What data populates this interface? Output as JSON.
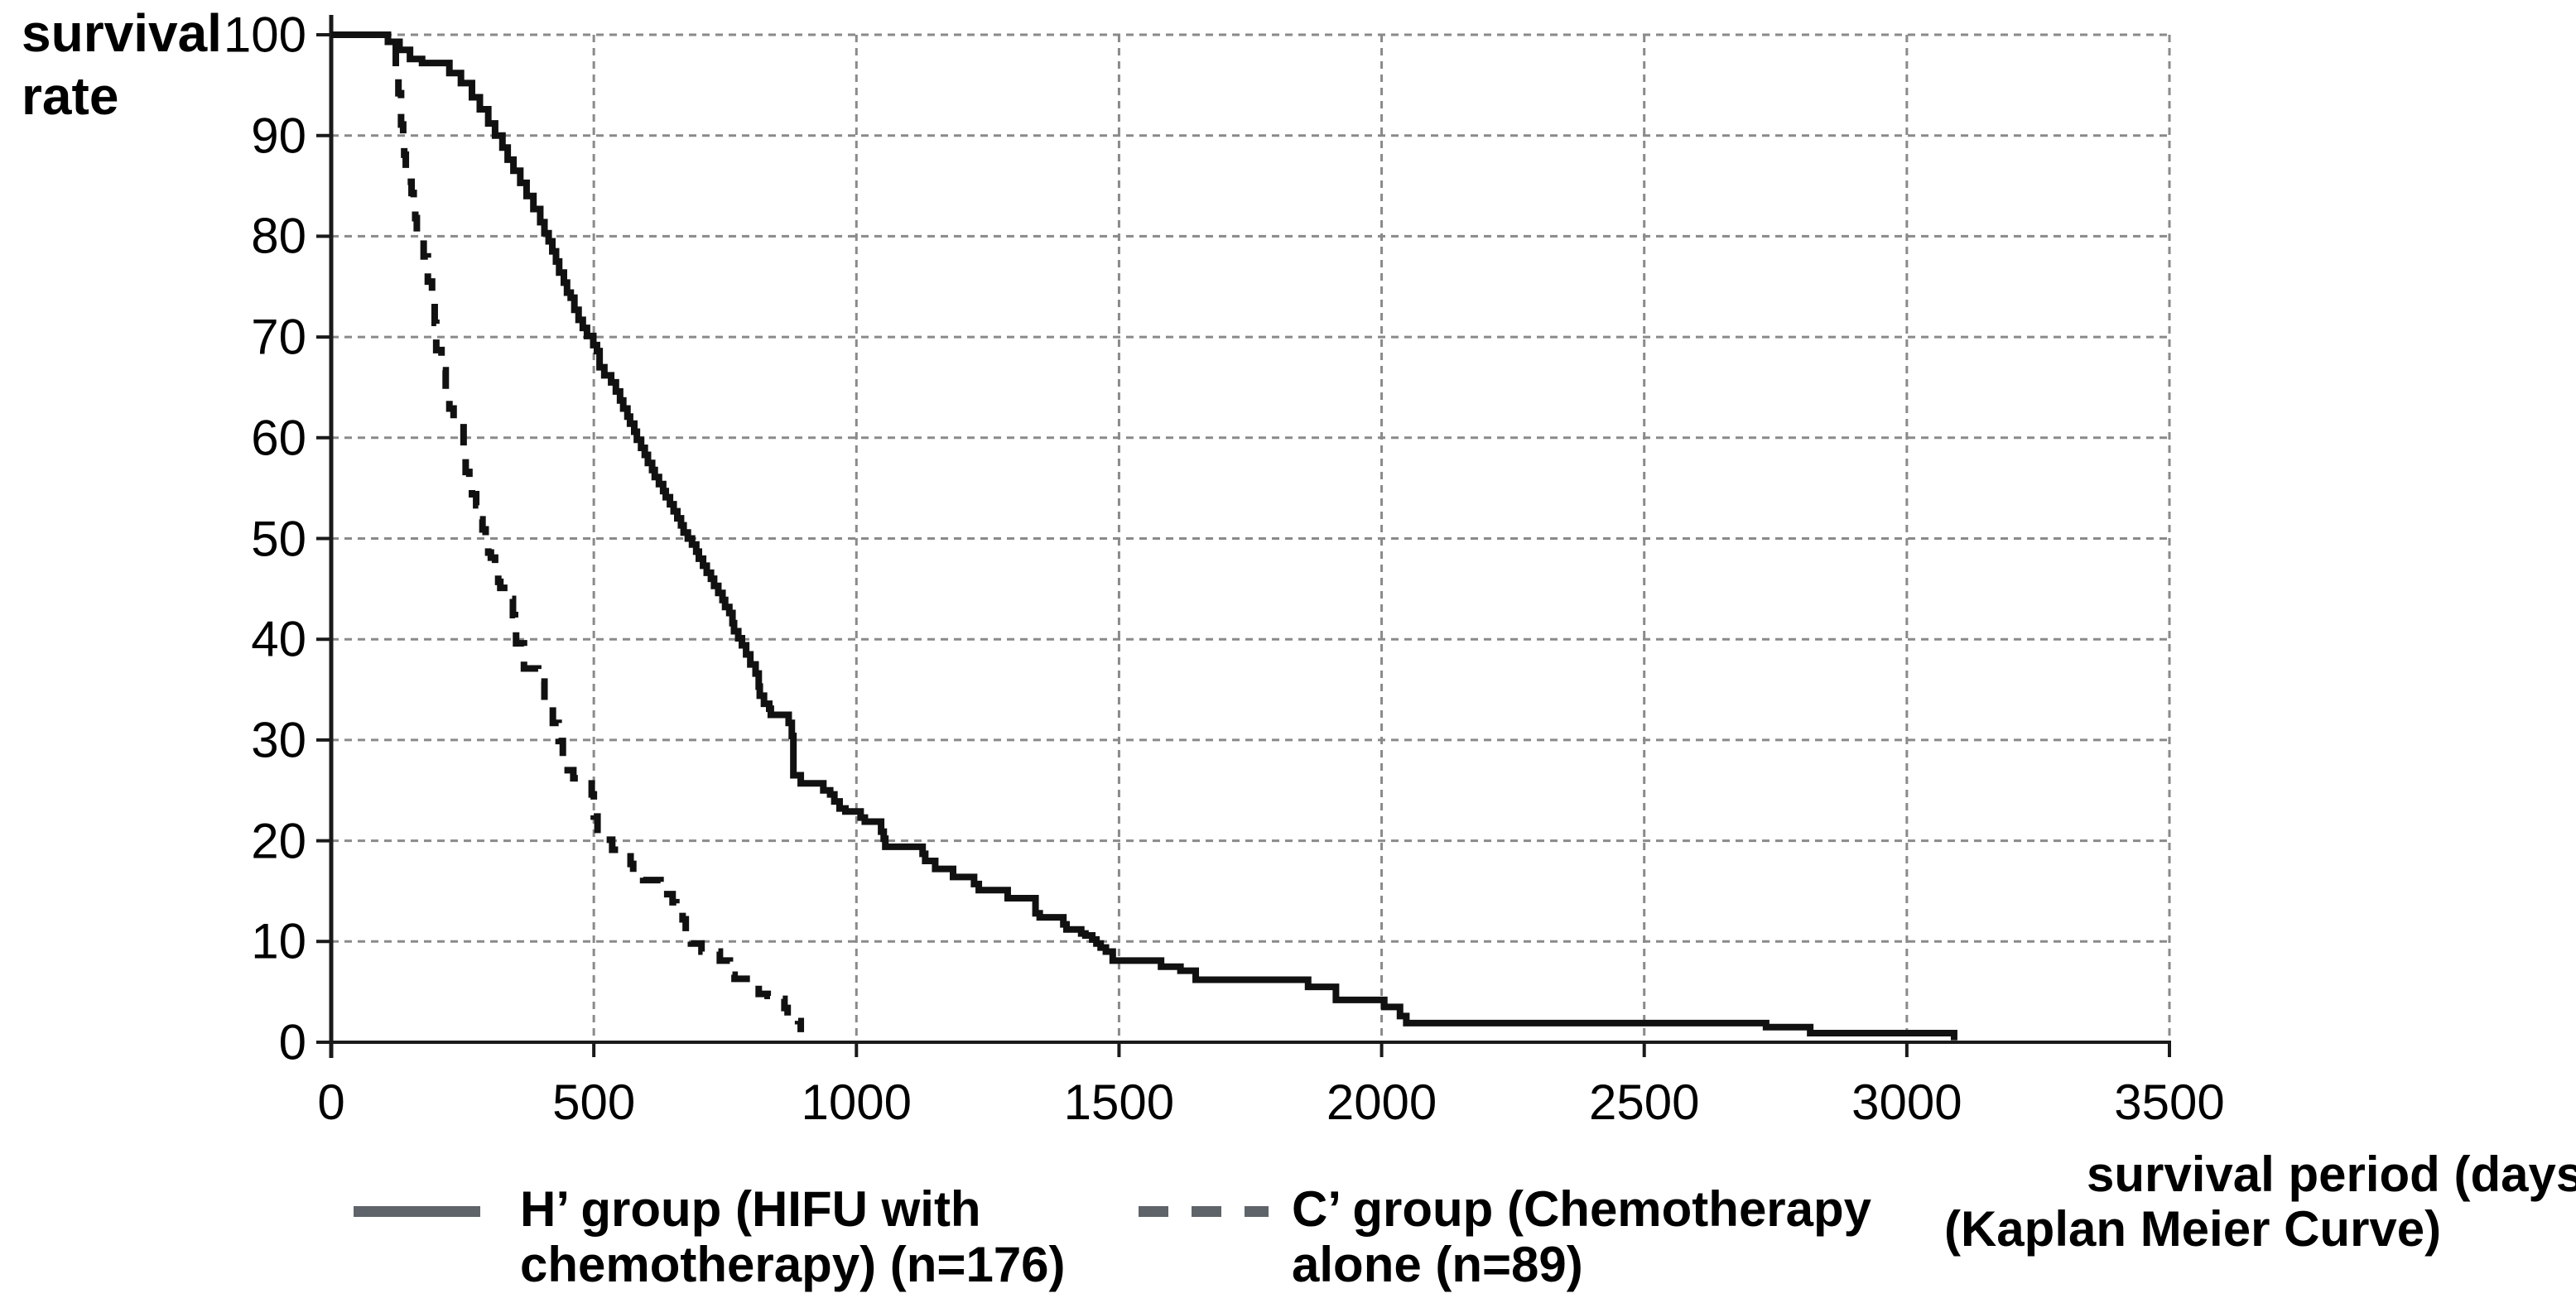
{
  "figure": {
    "background": "#ffffff",
    "y_axis_title": "survival rate",
    "x_axis_title_line1": "survival period (days)",
    "x_axis_title_line2": "(Kaplan Meier Curve)"
  },
  "colors": {
    "curve": "#111111",
    "axis": "#1a1a1a",
    "gridline": "#8a8a8a",
    "legend_sample": "#5f646b",
    "text": "#000000"
  },
  "legend": [
    {
      "id": "hifu",
      "style": "solid",
      "lines": [
        "H’ group (HIFU with",
        "chemotherapy) (n=176)"
      ]
    },
    {
      "id": "chemo",
      "style": "dashed",
      "lines": [
        "C’ group (Chemotherapy",
        "alone (n=89)"
      ]
    }
  ],
  "chart_data": {
    "type": "line",
    "subtype": "kaplan-meier-step",
    "title": "",
    "xlabel": "survival period (days)",
    "ylabel": "survival rate",
    "xlim": [
      0,
      3500
    ],
    "ylim": [
      0,
      100
    ],
    "x_ticks": [
      0,
      500,
      1000,
      1500,
      2000,
      2500,
      3000,
      3500
    ],
    "y_ticks": [
      0,
      10,
      20,
      30,
      40,
      50,
      60,
      70,
      80,
      90,
      100
    ],
    "grid": true,
    "legend_position": "bottom",
    "series": [
      {
        "name": "H’ group (HIFU with chemotherapy) (n=176)",
        "line_style": "solid",
        "points": [
          [
            0,
            100
          ],
          [
            108,
            99.3
          ],
          [
            130,
            98.5
          ],
          [
            150,
            97.6
          ],
          [
            173,
            97.2
          ],
          [
            225,
            96.2
          ],
          [
            247,
            95.2
          ],
          [
            268,
            93.8
          ],
          [
            283,
            92.6
          ],
          [
            299,
            91.2
          ],
          [
            312,
            90
          ],
          [
            326,
            88.8
          ],
          [
            336,
            87.6
          ],
          [
            347,
            86.5
          ],
          [
            360,
            85.3
          ],
          [
            372,
            84
          ],
          [
            385,
            82.7
          ],
          [
            398,
            81.4
          ],
          [
            406,
            80.3
          ],
          [
            414,
            79.5
          ],
          [
            421,
            78.5
          ],
          [
            428,
            77.5
          ],
          [
            434,
            76.4
          ],
          [
            443,
            75.4
          ],
          [
            449,
            74.4
          ],
          [
            456,
            73.9
          ],
          [
            463,
            72.7
          ],
          [
            471,
            71.7
          ],
          [
            479,
            70.9
          ],
          [
            487,
            70.1
          ],
          [
            499,
            69.2
          ],
          [
            506,
            68.6
          ],
          [
            511,
            67
          ],
          [
            520,
            66.2
          ],
          [
            533,
            65.5
          ],
          [
            542,
            64.6
          ],
          [
            550,
            63.7
          ],
          [
            556,
            62.9
          ],
          [
            564,
            62.1
          ],
          [
            569,
            61.4
          ],
          [
            577,
            60.6
          ],
          [
            582,
            59.8
          ],
          [
            590,
            59
          ],
          [
            597,
            58.3
          ],
          [
            603,
            57.5
          ],
          [
            611,
            56.8
          ],
          [
            616,
            56.1
          ],
          [
            624,
            55.4
          ],
          [
            632,
            54.7
          ],
          [
            637,
            54.1
          ],
          [
            645,
            53.4
          ],
          [
            652,
            52.7
          ],
          [
            659,
            52
          ],
          [
            666,
            51.3
          ],
          [
            671,
            50.6
          ],
          [
            679,
            50
          ],
          [
            687,
            49.4
          ],
          [
            695,
            48.7
          ],
          [
            700,
            48
          ],
          [
            708,
            47.3
          ],
          [
            715,
            46.6
          ],
          [
            723,
            46
          ],
          [
            729,
            45.3
          ],
          [
            737,
            44.6
          ],
          [
            745,
            43.9
          ],
          [
            750,
            43.2
          ],
          [
            758,
            42.6
          ],
          [
            764,
            41.6
          ],
          [
            767,
            40.8
          ],
          [
            775,
            40.1
          ],
          [
            782,
            39.4
          ],
          [
            790,
            38.5
          ],
          [
            798,
            37.5
          ],
          [
            808,
            36.6
          ],
          [
            814,
            35.3
          ],
          [
            816,
            34.4
          ],
          [
            824,
            33.6
          ],
          [
            834,
            33.1
          ],
          [
            837,
            32.5
          ],
          [
            871,
            31.7
          ],
          [
            877,
            30.4
          ],
          [
            880,
            26.5
          ],
          [
            894,
            25.7
          ],
          [
            937,
            25
          ],
          [
            950,
            24.6
          ],
          [
            958,
            23.9
          ],
          [
            968,
            23.2
          ],
          [
            979,
            22.9
          ],
          [
            1008,
            22.3
          ],
          [
            1016,
            21.9
          ],
          [
            1047,
            20.9
          ],
          [
            1052,
            20.2
          ],
          [
            1055,
            19.4
          ],
          [
            1126,
            18.7
          ],
          [
            1131,
            18
          ],
          [
            1150,
            17.2
          ],
          [
            1184,
            16.4
          ],
          [
            1224,
            15.7
          ],
          [
            1233,
            15.1
          ],
          [
            1288,
            14.3
          ],
          [
            1341,
            12.8
          ],
          [
            1349,
            12.4
          ],
          [
            1394,
            11.7
          ],
          [
            1400,
            11.2
          ],
          [
            1428,
            10.8
          ],
          [
            1436,
            10.6
          ],
          [
            1449,
            10.2
          ],
          [
            1457,
            9.8
          ],
          [
            1465,
            9.4
          ],
          [
            1475,
            9
          ],
          [
            1488,
            8.1
          ],
          [
            1580,
            7.5
          ],
          [
            1617,
            7.1
          ],
          [
            1646,
            6.2
          ],
          [
            1860,
            5.5
          ],
          [
            1913,
            4.2
          ],
          [
            2005,
            3.5
          ],
          [
            2035,
            2.6
          ],
          [
            2047,
            1.9
          ],
          [
            2732,
            1.5
          ],
          [
            2816,
            0.9
          ],
          [
            3090,
            0.2
          ]
        ]
      },
      {
        "name": "C’ group (Chemotherapy alone) (n=89)",
        "line_style": "dashed",
        "points": [
          [
            0,
            100
          ],
          [
            118,
            99.3
          ],
          [
            123,
            96.6
          ],
          [
            128,
            94.2
          ],
          [
            133,
            91.1
          ],
          [
            137,
            90.1
          ],
          [
            139,
            88.1
          ],
          [
            142,
            85.4
          ],
          [
            153,
            84.3
          ],
          [
            157,
            82.9
          ],
          [
            160,
            81.8
          ],
          [
            163,
            80.2
          ],
          [
            176,
            78
          ],
          [
            184,
            75.5
          ],
          [
            192,
            73.5
          ],
          [
            197,
            71.4
          ],
          [
            200,
            68.7
          ],
          [
            210,
            66.7
          ],
          [
            218,
            64.6
          ],
          [
            225,
            62.9
          ],
          [
            233,
            61.5
          ],
          [
            252,
            58.3
          ],
          [
            256,
            56.6
          ],
          [
            263,
            56
          ],
          [
            268,
            54.4
          ],
          [
            276,
            53.3
          ],
          [
            283,
            51.9
          ],
          [
            288,
            50.9
          ],
          [
            294,
            50.1
          ],
          [
            299,
            48.6
          ],
          [
            304,
            48.1
          ],
          [
            312,
            46.8
          ],
          [
            318,
            45.7
          ],
          [
            322,
            45.1
          ],
          [
            343,
            44
          ],
          [
            346,
            42.4
          ],
          [
            350,
            41
          ],
          [
            352,
            39.6
          ],
          [
            367,
            37.1
          ],
          [
            394,
            35.8
          ],
          [
            406,
            33.6
          ],
          [
            422,
            31.7
          ],
          [
            433,
            29.9
          ],
          [
            441,
            27
          ],
          [
            461,
            26.2
          ],
          [
            496,
            24.6
          ],
          [
            500,
            22.4
          ],
          [
            507,
            20.1
          ],
          [
            535,
            19.1
          ],
          [
            570,
            17.7
          ],
          [
            575,
            16.9
          ],
          [
            594,
            16.1
          ],
          [
            627,
            15.4
          ],
          [
            633,
            14.7
          ],
          [
            650,
            13.9
          ],
          [
            657,
            13.2
          ],
          [
            669,
            12.2
          ],
          [
            675,
            10
          ],
          [
            685,
            9.8
          ],
          [
            705,
            9
          ],
          [
            740,
            8.1
          ],
          [
            759,
            6.7
          ],
          [
            768,
            6.3
          ],
          [
            808,
            5.9
          ],
          [
            814,
            4.8
          ],
          [
            831,
            4.6
          ],
          [
            839,
            4.3
          ],
          [
            863,
            3.4
          ],
          [
            869,
            2.5
          ],
          [
            889,
            2.1
          ],
          [
            894,
            1
          ]
        ]
      }
    ]
  }
}
